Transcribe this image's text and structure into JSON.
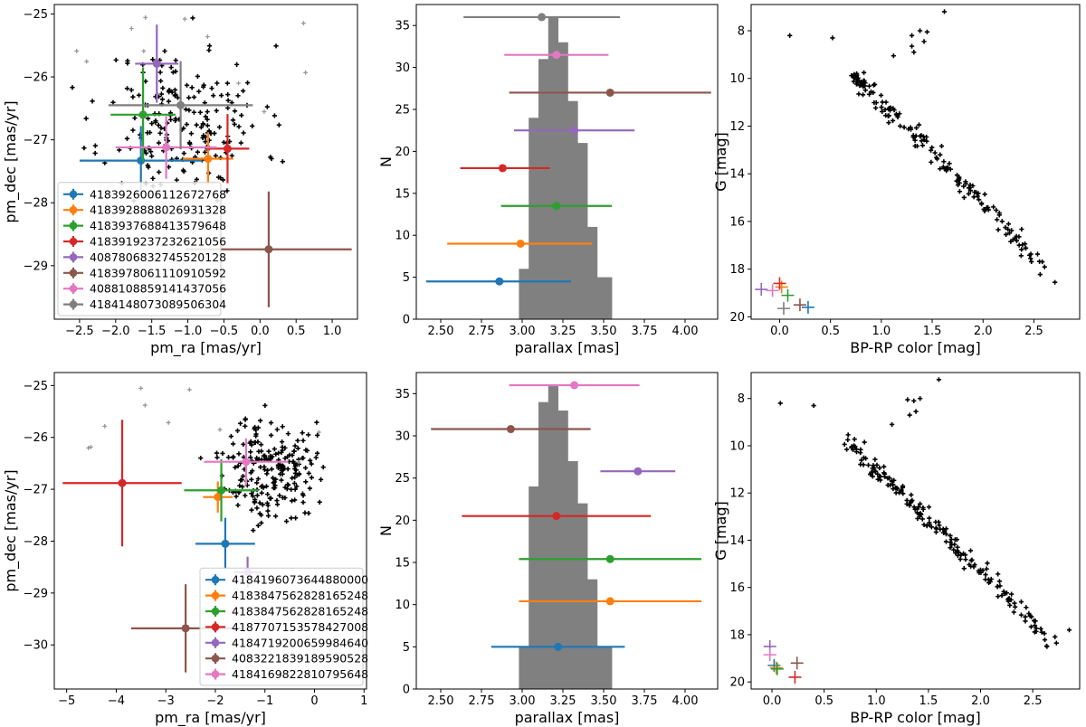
{
  "colors": {
    "c0": "#1f77b4",
    "c1": "#ff7f0e",
    "c2": "#2ca02c",
    "c3": "#d62728",
    "c4": "#9467bd",
    "c5": "#8c564b",
    "c6": "#e377c2",
    "c7": "#7f7f7f",
    "member": "#000000",
    "nonmember": "#999999",
    "hist": "#808080"
  },
  "chart_data": [
    {
      "type": "scatter",
      "title": "",
      "xlabel": "pm_ra [mas/yr]",
      "ylabel": "pm_dec [mas/yr]",
      "xlim": [
        -2.85,
        1.35
      ],
      "ylim": [
        -29.85,
        -24.85
      ],
      "xticks": [
        -2.5,
        -2.0,
        -1.5,
        -1.0,
        -0.5,
        0.0,
        0.5,
        1.0
      ],
      "xticklabels": [
        "−2.5",
        "−2.0",
        "−1.5",
        "−1.0",
        "−0.5",
        "0.0",
        "0.5",
        "1.0"
      ],
      "yticks": [
        -25,
        -26,
        -27,
        -28,
        -29
      ],
      "yticklabels": [
        "−25",
        "−26",
        "−27",
        "−28",
        "−29"
      ],
      "legend_position": "lower-left",
      "background": {
        "n": 200,
        "seed": 11,
        "cx": -1.05,
        "cy": -26.7,
        "sx": 0.55,
        "sy": 0.6,
        "n_nonmember": 12
      },
      "series": [
        {
          "name": "4183926006112672768",
          "color": "c0",
          "x": -1.65,
          "y": -27.33,
          "xerr": 0.85,
          "yerr": 0.55
        },
        {
          "name": "4183928888026931328",
          "color": "c1",
          "x": -0.72,
          "y": -27.3,
          "xerr": 0.35,
          "yerr": 0.42
        },
        {
          "name": "4183937688413579648",
          "color": "c2",
          "x": -1.62,
          "y": -26.6,
          "xerr": 0.45,
          "yerr": 0.75
        },
        {
          "name": "4183919237232621056",
          "color": "c3",
          "x": -0.45,
          "y": -27.14,
          "xerr": 0.3,
          "yerr": 0.55
        },
        {
          "name": "4087806832745520128",
          "color": "c4",
          "x": -1.43,
          "y": -25.79,
          "xerr": 0.3,
          "yerr": 0.62
        },
        {
          "name": "4183978061110910592",
          "color": "c5",
          "x": 0.12,
          "y": -28.74,
          "xerr": 1.15,
          "yerr": 0.92
        },
        {
          "name": "4088108859141437056",
          "color": "c6",
          "x": -1.3,
          "y": -27.12,
          "xerr": 0.7,
          "yerr": 0.5
        },
        {
          "name": "4184148073089506304",
          "color": "c7",
          "x": -1.1,
          "y": -26.45,
          "xerr": 1.0,
          "yerr": 0.7
        }
      ]
    },
    {
      "type": "histogram",
      "title": "",
      "xlabel": "parallax [mas]",
      "ylabel": "N",
      "xlim": [
        2.35,
        4.2
      ],
      "ylim": [
        0,
        37.5
      ],
      "xticks": [
        2.5,
        2.75,
        3.0,
        3.25,
        3.5,
        3.75,
        4.0
      ],
      "xticklabels": [
        "2.50",
        "2.75",
        "3.00",
        "3.25",
        "3.50",
        "3.75",
        "4.00"
      ],
      "yticks": [
        0,
        5,
        10,
        15,
        20,
        25,
        30,
        35
      ],
      "yticklabels": [
        "0",
        "5",
        "10",
        "15",
        "20",
        "25",
        "30",
        "35"
      ],
      "bins": [
        2.98,
        3.01,
        3.04,
        3.07,
        3.1,
        3.13,
        3.16,
        3.19,
        3.22,
        3.25,
        3.28,
        3.31,
        3.34,
        3.37,
        3.4,
        3.43,
        3.46,
        3.49,
        3.52,
        3.55
      ],
      "counts": [
        6,
        6,
        24,
        24,
        31,
        31,
        36,
        36,
        33,
        33,
        26,
        26,
        21,
        21,
        11,
        11,
        5,
        5,
        5
      ],
      "series": [
        {
          "name": "4183926006112672768",
          "color": "c0",
          "x": 2.86,
          "y": 4.5,
          "xerr_lo": 0.45,
          "xerr_hi": 0.44
        },
        {
          "name": "4183928888026931328",
          "color": "c1",
          "x": 2.99,
          "y": 9.0,
          "xerr_lo": 0.45,
          "xerr_hi": 0.44
        },
        {
          "name": "4183937688413579648",
          "color": "c2",
          "x": 3.21,
          "y": 13.5,
          "xerr_lo": 0.34,
          "xerr_hi": 0.34
        },
        {
          "name": "4183919237232621056",
          "color": "c3",
          "x": 2.88,
          "y": 18.0,
          "xerr_lo": 0.26,
          "xerr_hi": 0.29
        },
        {
          "name": "4087806832745520128",
          "color": "c4",
          "x": 3.32,
          "y": 22.5,
          "xerr_lo": 0.37,
          "xerr_hi": 0.37
        },
        {
          "name": "4183978061110910592",
          "color": "c5",
          "x": 3.54,
          "y": 27.0,
          "xerr_lo": 0.62,
          "xerr_hi": 0.62
        },
        {
          "name": "4088108859141437056",
          "color": "c6",
          "x": 3.21,
          "y": 31.5,
          "xerr_lo": 0.32,
          "xerr_hi": 0.32
        },
        {
          "name": "4184148073089506304",
          "color": "c7",
          "x": 3.12,
          "y": 36.0,
          "xerr_lo": 0.48,
          "xerr_hi": 0.48
        }
      ]
    },
    {
      "type": "scatter",
      "title": "",
      "xlabel": "BP-RP color [mag]",
      "ylabel": "G [mag]",
      "xlim": [
        -0.28,
        2.95
      ],
      "ylim": [
        20.1,
        6.9
      ],
      "xticks": [
        0.0,
        0.5,
        1.0,
        1.5,
        2.0,
        2.5
      ],
      "xticklabels": [
        "0.0",
        "0.5",
        "1.0",
        "1.5",
        "2.0",
        "2.5"
      ],
      "yticks": [
        8,
        10,
        12,
        14,
        16,
        18,
        20
      ],
      "yticklabels": [
        "8",
        "10",
        "12",
        "14",
        "16",
        "18",
        "20"
      ],
      "background": {
        "n": 170,
        "seed": 23
      },
      "extra_points": [
        [
          0.1,
          8.2
        ],
        [
          0.52,
          8.3
        ],
        [
          1.3,
          8.2
        ],
        [
          1.38,
          8.0
        ],
        [
          1.45,
          8.05
        ],
        [
          1.42,
          8.45
        ],
        [
          1.62,
          7.2
        ],
        [
          1.3,
          8.65
        ],
        [
          1.32,
          8.9
        ],
        [
          1.12,
          9.05
        ]
      ],
      "markers": [
        {
          "color": "c0",
          "x": 0.28,
          "y": 19.6
        },
        {
          "color": "c1",
          "x": 0.02,
          "y": 18.75
        },
        {
          "color": "c2",
          "x": 0.08,
          "y": 19.1
        },
        {
          "color": "c3",
          "x": 0.0,
          "y": 18.6
        },
        {
          "color": "c4",
          "x": -0.18,
          "y": 18.85
        },
        {
          "color": "c5",
          "x": 0.2,
          "y": 19.5
        },
        {
          "color": "c6",
          "x": -0.07,
          "y": 18.9
        },
        {
          "color": "c7",
          "x": 0.04,
          "y": 19.65
        }
      ]
    },
    {
      "type": "scatter",
      "title": "",
      "xlabel": "pm_ra [mas/yr]",
      "ylabel": "pm_dec [mas/yr]",
      "xlim": [
        -5.25,
        1.05
      ],
      "ylim": [
        -30.85,
        -24.75
      ],
      "xticks": [
        -5,
        -4,
        -3,
        -2,
        -1,
        0,
        1
      ],
      "xticklabels": [
        "−5",
        "−4",
        "−3",
        "−2",
        "−1",
        "0",
        "1"
      ],
      "yticks": [
        -25,
        -26,
        -27,
        -28,
        -29,
        -30
      ],
      "yticklabels": [
        "−25",
        "−26",
        "−27",
        "−28",
        "−29",
        "−30"
      ],
      "legend_position": "lower-right",
      "background": {
        "n": 220,
        "seed": 37,
        "cx": -0.9,
        "cy": -26.6,
        "sx": 0.45,
        "sy": 0.5,
        "n_nonmember": 10
      },
      "series": [
        {
          "name": "4184196073644880000",
          "color": "c0",
          "x": -1.8,
          "y": -28.05,
          "xerr": 0.6,
          "yerr": 0.5
        },
        {
          "name": "4183847562828165248",
          "color": "c1",
          "x": -1.95,
          "y": -27.15,
          "xerr": 0.3,
          "yerr": 0.3
        },
        {
          "name": "4183847562828165248",
          "color": "c2",
          "x": -1.88,
          "y": -27.02,
          "xerr": 0.75,
          "yerr": 0.6
        },
        {
          "name": "4187707153578427008",
          "color": "c3",
          "x": -3.88,
          "y": -26.88,
          "xerr": 1.2,
          "yerr": 1.22
        },
        {
          "name": "4184719200659984640",
          "color": "c4",
          "x": -1.35,
          "y": -28.6,
          "xerr": 0.28,
          "yerr": 0.3
        },
        {
          "name": "4083221839189590528",
          "color": "c5",
          "x": -2.6,
          "y": -29.68,
          "xerr": 1.1,
          "yerr": 0.85
        },
        {
          "name": "4184169822810795648",
          "color": "c6",
          "x": -1.38,
          "y": -26.47,
          "xerr": 0.85,
          "yerr": 0.45
        }
      ]
    },
    {
      "type": "histogram",
      "title": "",
      "xlabel": "parallax [mas]",
      "ylabel": "N",
      "xlim": [
        2.35,
        4.2
      ],
      "ylim": [
        0,
        37.5
      ],
      "xticks": [
        2.5,
        2.75,
        3.0,
        3.25,
        3.5,
        3.75,
        4.0
      ],
      "xticklabels": [
        "2.50",
        "2.75",
        "3.00",
        "3.25",
        "3.50",
        "3.75",
        "4.00"
      ],
      "yticks": [
        0,
        5,
        10,
        15,
        20,
        25,
        30,
        35
      ],
      "yticklabels": [
        "0",
        "5",
        "10",
        "15",
        "20",
        "25",
        "30",
        "35"
      ],
      "bins": [
        2.98,
        3.01,
        3.04,
        3.07,
        3.1,
        3.13,
        3.16,
        3.19,
        3.22,
        3.25,
        3.28,
        3.31,
        3.34,
        3.37,
        3.4,
        3.43,
        3.46,
        3.49,
        3.52,
        3.55
      ],
      "counts": [
        5,
        5,
        24,
        24,
        34,
        34,
        36,
        36,
        33,
        33,
        27,
        27,
        22,
        22,
        13,
        13,
        5,
        5,
        5
      ],
      "series": [
        {
          "name": "4184196073644880000",
          "color": "c0",
          "x": 3.22,
          "y": 5.0,
          "xerr_lo": 0.41,
          "xerr_hi": 0.41
        },
        {
          "name": "4183847562828165248",
          "color": "c1",
          "x": 3.54,
          "y": 10.4,
          "xerr_lo": 0.56,
          "xerr_hi": 0.56
        },
        {
          "name": "4183847562828165248",
          "color": "c2",
          "x": 3.54,
          "y": 15.4,
          "xerr_lo": 0.56,
          "xerr_hi": 0.56
        },
        {
          "name": "4187707153578427008",
          "color": "c3",
          "x": 3.21,
          "y": 20.5,
          "xerr_lo": 0.58,
          "xerr_hi": 0.58
        },
        {
          "name": "4184719200659984640",
          "color": "c4",
          "x": 3.71,
          "y": 25.8,
          "xerr_lo": 0.23,
          "xerr_hi": 0.23
        },
        {
          "name": "4083221839189590528",
          "color": "c5",
          "x": 2.93,
          "y": 30.8,
          "xerr_lo": 0.49,
          "xerr_hi": 0.49
        },
        {
          "name": "4184169822810795648",
          "color": "c6",
          "x": 3.32,
          "y": 36.0,
          "xerr_lo": 0.4,
          "xerr_hi": 0.4
        }
      ]
    },
    {
      "type": "scatter",
      "title": "",
      "xlabel": "BP-RP color [mag]",
      "ylabel": "G [mag]",
      "xlim": [
        -0.2,
        2.95
      ],
      "ylim": [
        20.3,
        6.9
      ],
      "xticks": [
        0.0,
        0.5,
        1.0,
        1.5,
        2.0,
        2.5
      ],
      "xticklabels": [
        "0.0",
        "0.5",
        "1.0",
        "1.5",
        "2.0",
        "2.5"
      ],
      "yticks": [
        8,
        10,
        12,
        14,
        16,
        18,
        20
      ],
      "yticklabels": [
        "8",
        "10",
        "12",
        "14",
        "16",
        "18",
        "20"
      ],
      "background": {
        "n": 190,
        "seed": 51
      },
      "extra_points": [
        [
          0.08,
          8.2
        ],
        [
          0.4,
          8.3
        ],
        [
          1.3,
          8.05
        ],
        [
          1.36,
          8.1
        ],
        [
          1.42,
          8.0
        ],
        [
          1.38,
          8.55
        ],
        [
          1.6,
          7.2
        ],
        [
          1.32,
          8.7
        ],
        [
          1.15,
          9.1
        ],
        [
          2.85,
          17.8
        ]
      ],
      "markers": [
        {
          "color": "c0",
          "x": 0.02,
          "y": 19.3
        },
        {
          "color": "c1",
          "x": 0.04,
          "y": 19.4
        },
        {
          "color": "c2",
          "x": 0.05,
          "y": 19.45
        },
        {
          "color": "c3",
          "x": 0.22,
          "y": 19.8
        },
        {
          "color": "c4",
          "x": -0.02,
          "y": 18.5
        },
        {
          "color": "c5",
          "x": 0.24,
          "y": 19.2
        },
        {
          "color": "c6",
          "x": -0.02,
          "y": 18.85
        }
      ]
    }
  ]
}
